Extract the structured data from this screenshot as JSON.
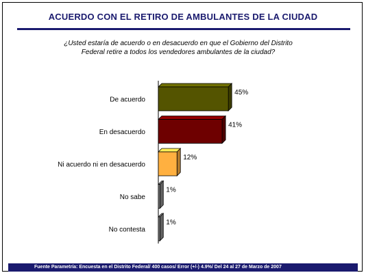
{
  "header": {
    "title": "ACUERDO CON EL RETIRO DE AMBULANTES DE LA CIUDAD"
  },
  "question": {
    "line1": "¿Usted estaría de acuerdo o en desacuerdo en que el Gobierno del Distrito",
    "line2": "Federal retire a todos los vendedores ambulantes de la ciudad?"
  },
  "footer": {
    "source": "Fuente Parametría: Encuesta en el Distrito Federal/ 400 casos/ Error (+/-) 4.9%/ Del 24 al 27 de Marzo de 2007"
  },
  "chart_data": {
    "type": "bar",
    "orientation": "horizontal",
    "categories": [
      "De acuerdo",
      "En desacuerdo",
      "Ni acuerdo ni en desacuerdo",
      "No sabe",
      "No contesta"
    ],
    "values": [
      45,
      41,
      12,
      1,
      1
    ],
    "value_labels": [
      "45%",
      "41%",
      "12%",
      "1%",
      "1%"
    ],
    "colors": [
      "#545400",
      "#6e0000",
      "#ffb040",
      "#8a8a8a",
      "#8a8a8a"
    ],
    "grid": false,
    "legend": "none"
  }
}
